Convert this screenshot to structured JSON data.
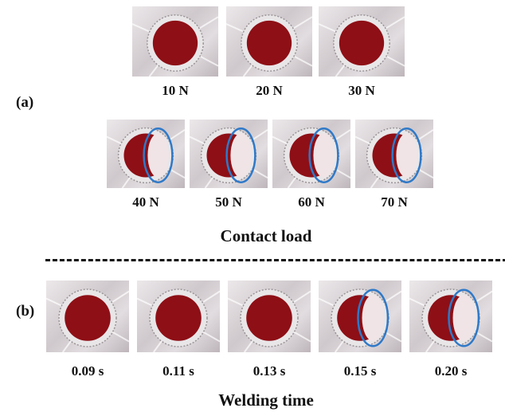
{
  "panel_a": {
    "label": "(a)",
    "axis_title": "Contact load",
    "samples": [
      {
        "load": "10 N",
        "defect_circled": false
      },
      {
        "load": "20 N",
        "defect_circled": false
      },
      {
        "load": "30 N",
        "defect_circled": false
      },
      {
        "load": "40 N",
        "defect_circled": true
      },
      {
        "load": "50 N",
        "defect_circled": true
      },
      {
        "load": "60 N",
        "defect_circled": true
      },
      {
        "load": "70 N",
        "defect_circled": true
      }
    ]
  },
  "panel_b": {
    "label": "(b)",
    "axis_title": "Welding time",
    "samples": [
      {
        "time": "0.09 s",
        "defect_circled": false
      },
      {
        "time": "0.11 s",
        "defect_circled": false
      },
      {
        "time": "0.13 s",
        "defect_circled": false
      },
      {
        "time": "0.15 s",
        "defect_circled": true
      },
      {
        "time": "0.20 s",
        "defect_circled": true
      }
    ]
  },
  "colors": {
    "weld_red": "#8e0f16",
    "highlight_circle": "#2f79c8",
    "ring": "#e9e6e8"
  }
}
